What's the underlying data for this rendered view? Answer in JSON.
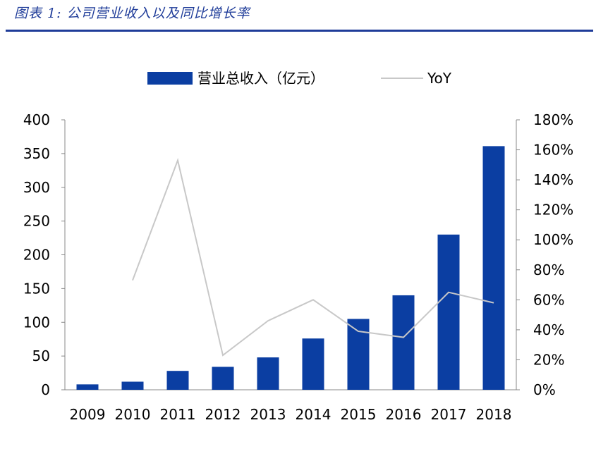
{
  "figure_title": "图表 1:  公司营业收入以及同比增长率",
  "colors": {
    "bar": "#0b3ea2",
    "line": "#c8c8c8",
    "title": "#1f3c99"
  },
  "chart_data": {
    "type": "bar",
    "categories": [
      "2009",
      "2010",
      "2011",
      "2012",
      "2013",
      "2014",
      "2015",
      "2016",
      "2017",
      "2018"
    ],
    "series": [
      {
        "name": "营业总收入（亿元）",
        "type": "bar",
        "axis": "left",
        "values": [
          8,
          12,
          28,
          34,
          48,
          76,
          105,
          140,
          230,
          361
        ]
      },
      {
        "name": "YoY",
        "type": "line",
        "axis": "right",
        "values": [
          null,
          0.73,
          1.53,
          0.23,
          0.46,
          0.6,
          0.39,
          0.35,
          0.65,
          0.58
        ]
      }
    ],
    "y_left": {
      "lim": [
        0,
        400
      ],
      "ticks": [
        "0",
        "50",
        "100",
        "150",
        "200",
        "250",
        "300",
        "350",
        "400"
      ]
    },
    "y_right": {
      "lim": [
        0,
        1.8
      ],
      "ticks": [
        "0%",
        "20%",
        "40%",
        "60%",
        "80%",
        "100%",
        "120%",
        "140%",
        "160%",
        "180%"
      ]
    },
    "grid": false,
    "legend_position": "top"
  }
}
